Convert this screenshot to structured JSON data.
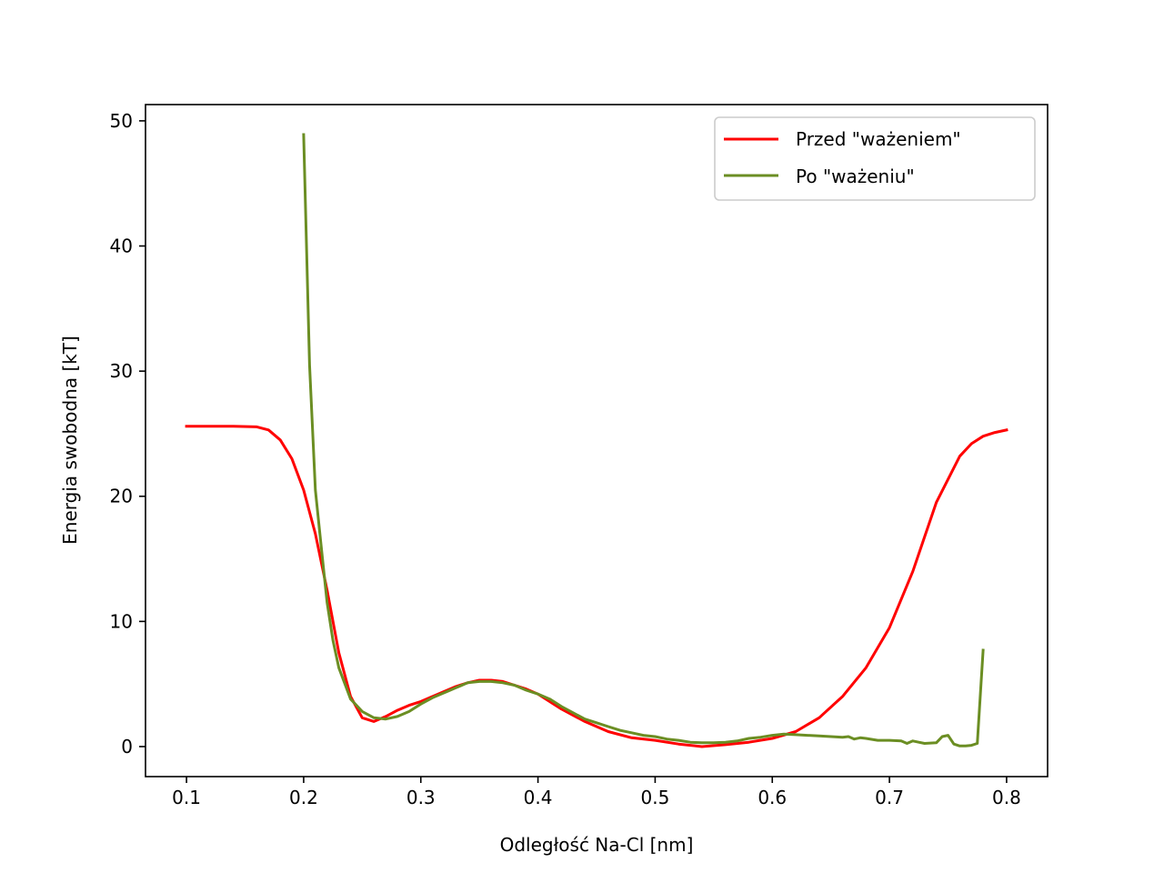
{
  "chart_data": {
    "type": "line",
    "title": "",
    "xlabel": "Odległość Na-Cl [nm]",
    "ylabel": "Energia swobodna [kT]",
    "xlim": [
      0.065,
      0.835
    ],
    "ylim": [
      -2.4,
      51.3
    ],
    "xticks": [
      0.1,
      0.2,
      0.3,
      0.4,
      0.5,
      0.6,
      0.7,
      0.8
    ],
    "xtick_labels": [
      "0.1",
      "0.2",
      "0.3",
      "0.4",
      "0.5",
      "0.6",
      "0.7",
      "0.8"
    ],
    "yticks": [
      0,
      10,
      20,
      30,
      40,
      50
    ],
    "ytick_labels": [
      "0",
      "10",
      "20",
      "30",
      "40",
      "50"
    ],
    "grid": false,
    "legend_position": "top-right",
    "series": [
      {
        "name": "Przed \"ważeniem\"",
        "color": "#ff0000",
        "x": [
          0.1,
          0.12,
          0.14,
          0.16,
          0.17,
          0.18,
          0.19,
          0.2,
          0.21,
          0.22,
          0.23,
          0.24,
          0.25,
          0.26,
          0.27,
          0.28,
          0.29,
          0.3,
          0.31,
          0.32,
          0.33,
          0.34,
          0.35,
          0.36,
          0.37,
          0.38,
          0.39,
          0.4,
          0.42,
          0.44,
          0.46,
          0.48,
          0.5,
          0.52,
          0.54,
          0.56,
          0.58,
          0.6,
          0.62,
          0.64,
          0.66,
          0.68,
          0.7,
          0.72,
          0.74,
          0.76,
          0.77,
          0.78,
          0.79,
          0.8
        ],
        "y": [
          25.6,
          25.6,
          25.6,
          25.55,
          25.3,
          24.5,
          23.0,
          20.5,
          17.0,
          12.5,
          7.5,
          4.0,
          2.3,
          2.0,
          2.4,
          2.9,
          3.3,
          3.6,
          4.0,
          4.4,
          4.8,
          5.1,
          5.3,
          5.3,
          5.2,
          4.9,
          4.6,
          4.2,
          3.0,
          2.0,
          1.2,
          0.7,
          0.5,
          0.2,
          0.0,
          0.15,
          0.35,
          0.65,
          1.2,
          2.3,
          4.0,
          6.3,
          9.5,
          14.0,
          19.5,
          23.2,
          24.2,
          24.8,
          25.1,
          25.3
        ]
      },
      {
        "name": "Po \"ważeniu\"",
        "color": "#6b8e23",
        "x": [
          0.2,
          0.205,
          0.21,
          0.215,
          0.22,
          0.225,
          0.23,
          0.24,
          0.25,
          0.26,
          0.27,
          0.28,
          0.29,
          0.3,
          0.31,
          0.32,
          0.33,
          0.34,
          0.35,
          0.36,
          0.37,
          0.38,
          0.39,
          0.4,
          0.41,
          0.42,
          0.43,
          0.44,
          0.45,
          0.46,
          0.47,
          0.48,
          0.49,
          0.5,
          0.51,
          0.52,
          0.53,
          0.54,
          0.55,
          0.56,
          0.57,
          0.58,
          0.59,
          0.6,
          0.61,
          0.62,
          0.63,
          0.64,
          0.65,
          0.66,
          0.665,
          0.67,
          0.675,
          0.68,
          0.69,
          0.7,
          0.71,
          0.715,
          0.72,
          0.725,
          0.73,
          0.74,
          0.745,
          0.75,
          0.755,
          0.76,
          0.765,
          0.77,
          0.775,
          0.78
        ],
        "y": [
          48.9,
          30.5,
          20.5,
          16.0,
          11.5,
          8.5,
          6.3,
          3.8,
          2.8,
          2.3,
          2.2,
          2.4,
          2.8,
          3.4,
          3.9,
          4.3,
          4.7,
          5.1,
          5.2,
          5.2,
          5.1,
          4.9,
          4.5,
          4.2,
          3.8,
          3.2,
          2.7,
          2.2,
          1.9,
          1.6,
          1.3,
          1.1,
          0.9,
          0.8,
          0.6,
          0.5,
          0.35,
          0.3,
          0.3,
          0.35,
          0.45,
          0.65,
          0.75,
          0.9,
          1.0,
          0.95,
          0.9,
          0.85,
          0.8,
          0.75,
          0.8,
          0.6,
          0.7,
          0.65,
          0.5,
          0.5,
          0.45,
          0.25,
          0.45,
          0.35,
          0.25,
          0.3,
          0.8,
          0.9,
          0.2,
          0.05,
          0.05,
          0.1,
          0.25,
          7.7
        ]
      }
    ]
  }
}
